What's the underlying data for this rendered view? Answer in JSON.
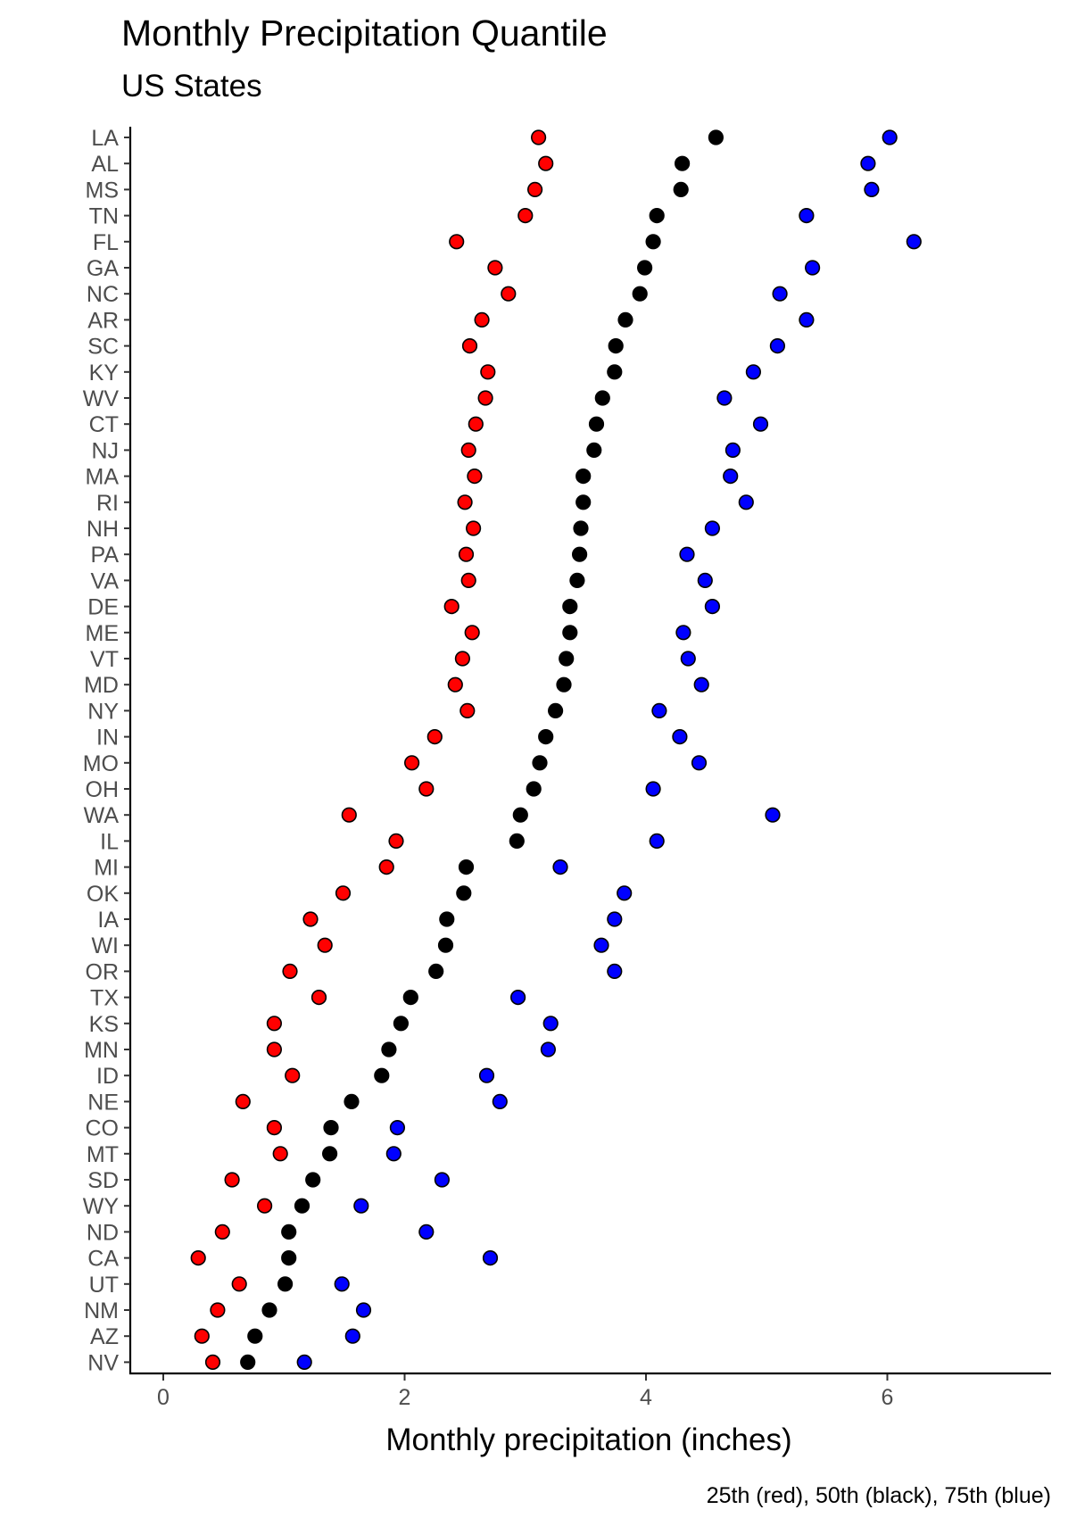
{
  "chart_data": {
    "type": "scatter",
    "title": "Monthly Precipitation Quantile",
    "subtitle": "US States",
    "xlabel": "Monthly precipitation (inches)",
    "ylabel": "",
    "caption": "25th (red), 50th (black), 75th (blue)",
    "xlim": [
      -0.3,
      7.3
    ],
    "xticks": [
      0,
      2,
      4,
      6
    ],
    "grid": false,
    "legend": "none",
    "categories": [
      "LA",
      "AL",
      "MS",
      "TN",
      "FL",
      "GA",
      "NC",
      "AR",
      "SC",
      "KY",
      "WV",
      "CT",
      "NJ",
      "MA",
      "RI",
      "NH",
      "PA",
      "VA",
      "DE",
      "ME",
      "VT",
      "MD",
      "NY",
      "IN",
      "MO",
      "OH",
      "WA",
      "IL",
      "MI",
      "OK",
      "IA",
      "WI",
      "OR",
      "TX",
      "KS",
      "MN",
      "ID",
      "NE",
      "CO",
      "MT",
      "SD",
      "WY",
      "ND",
      "CA",
      "UT",
      "NM",
      "AZ",
      "NV"
    ],
    "series": [
      {
        "name": "25th",
        "color": "#ff0000",
        "values": [
          3.11,
          3.17,
          3.08,
          3.0,
          2.43,
          2.75,
          2.86,
          2.64,
          2.54,
          2.69,
          2.67,
          2.59,
          2.53,
          2.58,
          2.5,
          2.57,
          2.51,
          2.53,
          2.39,
          2.56,
          2.48,
          2.42,
          2.52,
          2.25,
          2.06,
          2.18,
          1.54,
          1.93,
          1.85,
          1.49,
          1.22,
          1.34,
          1.05,
          1.29,
          0.92,
          0.92,
          1.07,
          0.66,
          0.92,
          0.97,
          0.57,
          0.84,
          0.49,
          0.29,
          0.63,
          0.45,
          0.32,
          0.41
        ]
      },
      {
        "name": "50th",
        "color": "#000000",
        "values": [
          4.58,
          4.3,
          4.29,
          4.09,
          4.06,
          3.99,
          3.95,
          3.83,
          3.75,
          3.74,
          3.64,
          3.59,
          3.57,
          3.48,
          3.48,
          3.46,
          3.45,
          3.43,
          3.37,
          3.37,
          3.34,
          3.32,
          3.25,
          3.17,
          3.12,
          3.07,
          2.96,
          2.93,
          2.51,
          2.49,
          2.35,
          2.34,
          2.26,
          2.05,
          1.97,
          1.87,
          1.81,
          1.56,
          1.39,
          1.38,
          1.24,
          1.15,
          1.04,
          1.04,
          1.01,
          0.88,
          0.76,
          0.7
        ]
      },
      {
        "name": "75th",
        "color": "#0000ff",
        "values": [
          6.02,
          5.84,
          5.87,
          5.33,
          6.22,
          5.38,
          5.11,
          5.33,
          5.09,
          4.89,
          4.65,
          4.95,
          4.72,
          4.7,
          4.83,
          4.55,
          4.34,
          4.49,
          4.55,
          4.31,
          4.35,
          4.46,
          4.11,
          4.28,
          4.44,
          4.06,
          5.05,
          4.09,
          3.29,
          3.82,
          3.74,
          3.63,
          3.74,
          2.94,
          3.21,
          3.19,
          2.68,
          2.79,
          1.94,
          1.91,
          2.31,
          1.64,
          2.18,
          2.71,
          1.48,
          1.66,
          1.57,
          1.17
        ]
      }
    ]
  }
}
